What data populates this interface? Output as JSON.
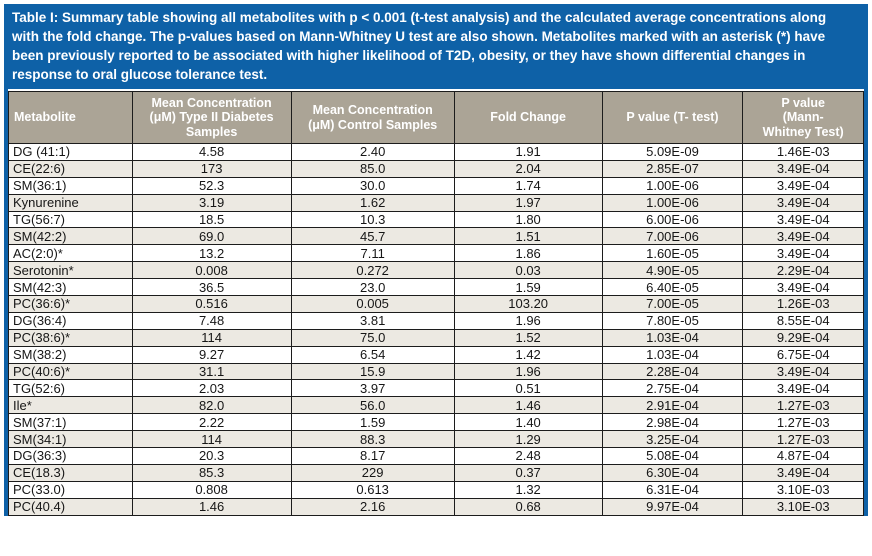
{
  "caption": {
    "label": "Table I",
    "text": ": Summary table showing all metabolites with p < 0.001 (t-test analysis) and the calculated average concentrations along with the fold change. The p-values based on Mann-Whitney U test are also shown. Metabolites marked with an asterisk (*) have been previously reported to be associated with higher likelihood of T2D, obesity, or they have shown differential changes in response to oral glucose tolerance test."
  },
  "colors": {
    "caption_blue": "#0e61a7",
    "header_tan": "#aba496",
    "alt_row_beige": "#ece9e2",
    "border_dark": "#1c1c1c"
  },
  "chart_data": {
    "type": "table",
    "columns": [
      "Metabolite",
      "Mean Concentration\n(μM) Type II Diabetes\nSamples",
      "Mean Concentration\n(μM) Control Samples",
      "Fold Change",
      "P value (T- test)",
      "P value\n(Mann-\nWhitney Test)"
    ],
    "rows": [
      [
        "DG (41:1)",
        "4.58",
        "2.40",
        "1.91",
        "5.09E-09",
        "1.46E-03"
      ],
      [
        "CE(22:6)",
        "173",
        "85.0",
        "2.04",
        "2.85E-07",
        "3.49E-04"
      ],
      [
        "SM(36:1)",
        "52.3",
        "30.0",
        "1.74",
        "1.00E-06",
        "3.49E-04"
      ],
      [
        "Kynurenine",
        "3.19",
        "1.62",
        "1.97",
        "1.00E-06",
        "3.49E-04"
      ],
      [
        "TG(56:7)",
        "18.5",
        "10.3",
        "1.80",
        "6.00E-06",
        "3.49E-04"
      ],
      [
        "SM(42:2)",
        "69.0",
        "45.7",
        "1.51",
        "7.00E-06",
        "3.49E-04"
      ],
      [
        "AC(2:0)*",
        "13.2",
        "7.11",
        "1.86",
        "1.60E-05",
        "3.49E-04"
      ],
      [
        "Serotonin*",
        "0.008",
        "0.272",
        "0.03",
        "4.90E-05",
        "2.29E-04"
      ],
      [
        "SM(42:3)",
        "36.5",
        "23.0",
        "1.59",
        "6.40E-05",
        "3.49E-04"
      ],
      [
        "PC(36:6)*",
        "0.516",
        "0.005",
        "103.20",
        "7.00E-05",
        "1.26E-03"
      ],
      [
        "DG(36:4)",
        "7.48",
        "3.81",
        "1.96",
        "7.80E-05",
        "8.55E-04"
      ],
      [
        "PC(38:6)*",
        "114",
        "75.0",
        "1.52",
        "1.03E-04",
        "9.29E-04"
      ],
      [
        "SM(38:2)",
        "9.27",
        "6.54",
        "1.42",
        "1.03E-04",
        "6.75E-04"
      ],
      [
        "PC(40:6)*",
        "31.1",
        "15.9",
        "1.96",
        "2.28E-04",
        "3.49E-04"
      ],
      [
        "TG(52:6)",
        "2.03",
        "3.97",
        "0.51",
        "2.75E-04",
        "3.49E-04"
      ],
      [
        "Ile*",
        "82.0",
        "56.0",
        "1.46",
        "2.91E-04",
        "1.27E-03"
      ],
      [
        "SM(37:1)",
        "2.22",
        "1.59",
        "1.40",
        "2.98E-04",
        "1.27E-03"
      ],
      [
        "SM(34:1)",
        "114",
        "88.3",
        "1.29",
        "3.25E-04",
        "1.27E-03"
      ],
      [
        "DG(36:3)",
        "20.3",
        "8.17",
        "2.48",
        "5.08E-04",
        "4.87E-04"
      ],
      [
        "CE(18.3)",
        "85.3",
        "229",
        "0.37",
        "6.30E-04",
        "3.49E-04"
      ],
      [
        "PC(33.0)",
        "0.808",
        "0.613",
        "1.32",
        "6.31E-04",
        "3.10E-03"
      ],
      [
        "PC(40.4)",
        "1.46",
        "2.16",
        "0.68",
        "9.97E-04",
        "3.10E-03"
      ]
    ]
  }
}
